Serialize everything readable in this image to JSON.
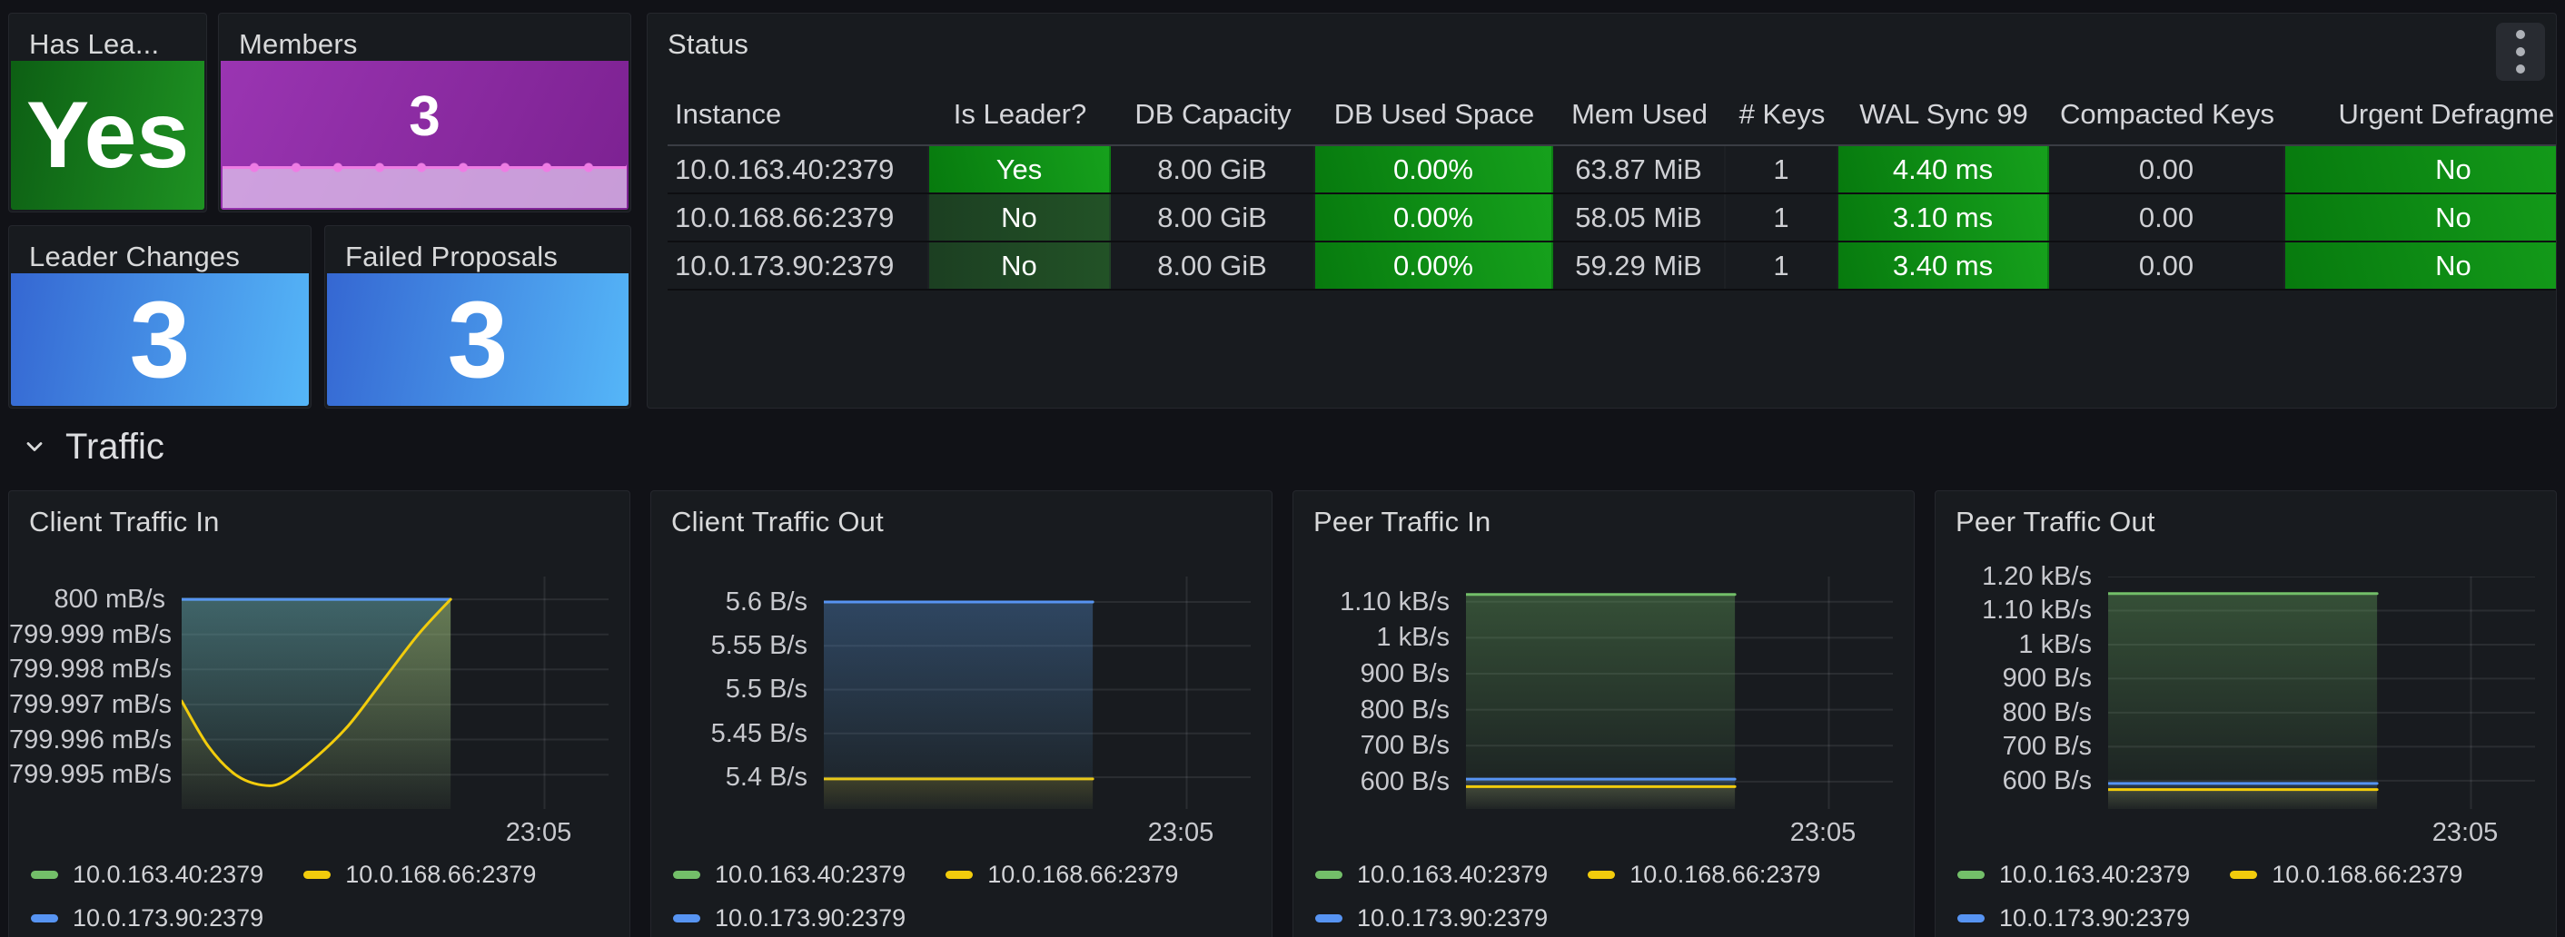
{
  "panels": {
    "has_leader": {
      "title": "Has Lea...",
      "value": "Yes"
    },
    "members": {
      "title": "Members",
      "value": "3"
    },
    "leader_changes": {
      "title": "Leader Changes",
      "value": "3"
    },
    "failed_proposals": {
      "title": "Failed Proposals",
      "value": "3"
    },
    "status": {
      "title": "Status",
      "menu_icon": "kebab-menu-icon",
      "columns": [
        {
          "label": "Instance",
          "key": "instance",
          "style": "plain",
          "align": "left"
        },
        {
          "label": "Is Leader?",
          "key": "is_leader",
          "style": "leader",
          "align": "center"
        },
        {
          "label": "DB Capacity",
          "key": "db_capacity",
          "style": "plain",
          "align": "center"
        },
        {
          "label": "DB Used Space",
          "key": "db_used",
          "style": "green",
          "align": "center"
        },
        {
          "label": "Mem Used",
          "key": "mem_used",
          "style": "plain",
          "align": "center"
        },
        {
          "label": "# Keys",
          "key": "keys",
          "style": "plain",
          "align": "center"
        },
        {
          "label": "WAL Sync 99",
          "key": "wal_sync",
          "style": "green",
          "align": "center"
        },
        {
          "label": "Compacted Keys",
          "key": "compacted",
          "style": "plain",
          "align": "center"
        },
        {
          "label": "Urgent Defragmen",
          "key": "urgent_defrag",
          "style": "green",
          "align": "center"
        }
      ],
      "rows": [
        {
          "instance": "10.0.163.40:2379",
          "is_leader": "Yes",
          "db_capacity": "8.00 GiB",
          "db_used": "0.00%",
          "mem_used": "63.87 MiB",
          "keys": "1",
          "wal_sync": "4.40 ms",
          "compacted": "0.00",
          "urgent_defrag": "No"
        },
        {
          "instance": "10.0.168.66:2379",
          "is_leader": "No",
          "db_capacity": "8.00 GiB",
          "db_used": "0.00%",
          "mem_used": "58.05 MiB",
          "keys": "1",
          "wal_sync": "3.10 ms",
          "compacted": "0.00",
          "urgent_defrag": "No"
        },
        {
          "instance": "10.0.173.90:2379",
          "is_leader": "No",
          "db_capacity": "8.00 GiB",
          "db_used": "0.00%",
          "mem_used": "59.29 MiB",
          "keys": "1",
          "wal_sync": "3.40 ms",
          "compacted": "0.00",
          "urgent_defrag": "No"
        }
      ]
    }
  },
  "section": {
    "title": "Traffic"
  },
  "legend": [
    {
      "name": "10.0.163.40:2379",
      "color": "#73BF69"
    },
    {
      "name": "10.0.168.66:2379",
      "color": "#F2CC0C"
    },
    {
      "name": "10.0.173.90:2379",
      "color": "#5794F2"
    }
  ],
  "chart_data": [
    {
      "type": "line",
      "title": "Client Traffic In",
      "unit": "mB/s",
      "x_label": "23:05",
      "ylim": [
        799.99402,
        800.00065
      ],
      "ticks": [
        {
          "v": 800,
          "label": "800 mB/s"
        },
        {
          "v": 799.999,
          "label": "799.999 mB/s"
        },
        {
          "v": 799.998,
          "label": "799.998 mB/s"
        },
        {
          "v": 799.997,
          "label": "799.997 mB/s"
        },
        {
          "v": 799.996,
          "label": "799.996 mB/s"
        },
        {
          "v": 799.995,
          "label": "799.995 mB/s"
        }
      ],
      "series": [
        {
          "name": "10.0.163.40:2379",
          "color": "#73BF69",
          "fill": 0.34,
          "points": [
            [
              0,
              800
            ],
            [
              1,
              800
            ]
          ]
        },
        {
          "name": "10.0.173.90:2379",
          "color": "#5794F2",
          "fill": 0.26,
          "points": [
            [
              0,
              800
            ],
            [
              1,
              800
            ]
          ]
        },
        {
          "name": "10.0.168.66:2379",
          "color": "#F2CC0C",
          "fill": 0.22,
          "points": [
            [
              0,
              799.9971
            ],
            [
              0.1,
              799.9958
            ],
            [
              0.2,
              799.995
            ],
            [
              0.3,
              799.9947
            ],
            [
              0.38,
              799.9948
            ],
            [
              0.5,
              799.9955
            ],
            [
              0.62,
              799.9964
            ],
            [
              0.75,
              799.9977
            ],
            [
              0.88,
              799.999
            ],
            [
              1,
              800.0
            ]
          ]
        }
      ]
    },
    {
      "type": "line",
      "title": "Client Traffic Out",
      "unit": "B/s",
      "x_label": "23:05",
      "ylim": [
        5.3637,
        5.629
      ],
      "ticks": [
        {
          "v": 5.6,
          "label": "5.6 B/s"
        },
        {
          "v": 5.55,
          "label": "5.55 B/s"
        },
        {
          "v": 5.5,
          "label": "5.5 B/s"
        },
        {
          "v": 5.45,
          "label": "5.45 B/s"
        },
        {
          "v": 5.4,
          "label": "5.4 B/s"
        }
      ],
      "series": [
        {
          "name": "10.0.163.40:2379",
          "color": "#73BF69",
          "fill": 0.06,
          "points": [
            [
              0,
              5.6
            ],
            [
              1,
              5.6
            ]
          ]
        },
        {
          "name": "10.0.168.66:2379",
          "color": "#F2CC0C",
          "fill": 0.16,
          "points": [
            [
              0,
              5.398
            ],
            [
              1,
              5.398
            ]
          ]
        },
        {
          "name": "10.0.173.90:2379",
          "color": "#5794F2",
          "fill": 0.3,
          "points": [
            [
              0,
              5.6
            ],
            [
              1,
              5.6
            ]
          ]
        }
      ]
    },
    {
      "type": "line",
      "title": "Peer Traffic In",
      "unit": "B/s",
      "x_label": "23:05",
      "ylim": [
        524,
        1170
      ],
      "ticks": [
        {
          "v": 1100,
          "label": "1.10 kB/s"
        },
        {
          "v": 1000,
          "label": "1 kB/s"
        },
        {
          "v": 900,
          "label": "900 B/s"
        },
        {
          "v": 800,
          "label": "800 B/s"
        },
        {
          "v": 700,
          "label": "700 B/s"
        },
        {
          "v": 600,
          "label": "600 B/s"
        }
      ],
      "series": [
        {
          "name": "10.0.163.40:2379",
          "color": "#73BF69",
          "fill": 0.32,
          "points": [
            [
              0,
              1120
            ],
            [
              1,
              1120
            ]
          ]
        },
        {
          "name": "10.0.173.90:2379",
          "color": "#5794F2",
          "fill": 0.18,
          "points": [
            [
              0,
              607
            ],
            [
              1,
              607
            ]
          ]
        },
        {
          "name": "10.0.168.66:2379",
          "color": "#F2CC0C",
          "fill": 0.14,
          "points": [
            [
              0,
              586
            ],
            [
              1,
              586
            ]
          ]
        }
      ]
    },
    {
      "type": "line",
      "title": "Peer Traffic Out",
      "unit": "B/s",
      "x_label": "23:05",
      "ylim": [
        517,
        1200
      ],
      "ticks": [
        {
          "v": 1200,
          "label": "1.20 kB/s"
        },
        {
          "v": 1100,
          "label": "1.10 kB/s"
        },
        {
          "v": 1000,
          "label": "1 kB/s"
        },
        {
          "v": 900,
          "label": "900 B/s"
        },
        {
          "v": 800,
          "label": "800 B/s"
        },
        {
          "v": 700,
          "label": "700 B/s"
        },
        {
          "v": 600,
          "label": "600 B/s"
        }
      ],
      "series": [
        {
          "name": "10.0.163.40:2379",
          "color": "#73BF69",
          "fill": 0.32,
          "points": [
            [
              0,
              1150
            ],
            [
              1,
              1150
            ]
          ]
        },
        {
          "name": "10.0.173.90:2379",
          "color": "#5794F2",
          "fill": 0.18,
          "points": [
            [
              0,
              592
            ],
            [
              1,
              592
            ]
          ]
        },
        {
          "name": "10.0.168.66:2379",
          "color": "#F2CC0C",
          "fill": 0.14,
          "points": [
            [
              0,
              574
            ],
            [
              1,
              574
            ]
          ]
        }
      ]
    }
  ],
  "colors": {
    "green_bright_from": "#077a0e",
    "green_bright_to": "#16a11c",
    "green_dim_from": "#1c3f22",
    "green_dim_to": "#225226",
    "stat_green_from": "#0d5f14",
    "stat_green_to": "#1e9222",
    "stat_purple_light": "#9a35b2",
    "stat_purple_dark": "#7c2191",
    "stat_blue_from": "#3567d2",
    "stat_blue_to": "#55b6f8",
    "spark_fill": "rgba(222,191,236,0.78)",
    "spark_line": "#ee7ce4"
  }
}
